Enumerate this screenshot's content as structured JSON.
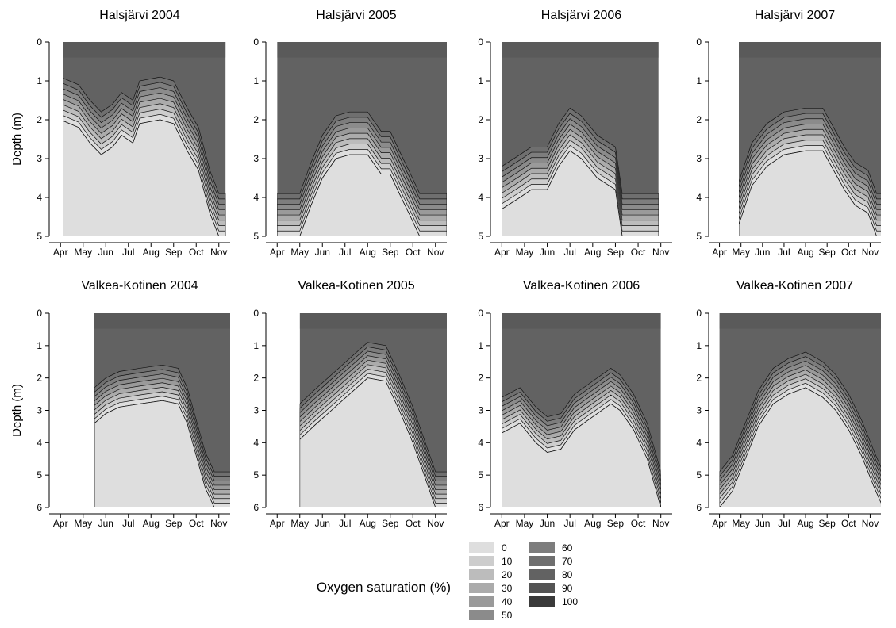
{
  "chart_data": [
    {
      "type": "heatmap",
      "title": "Halsjärvi 2004",
      "ylabel": "Depth (m)",
      "ylim": [
        5,
        0
      ],
      "yticks": [
        0,
        1,
        2,
        3,
        4,
        5
      ],
      "xticks": [
        "Apr",
        "May",
        "Jun",
        "Jul",
        "Aug",
        "Sep",
        "Oct",
        "Nov"
      ],
      "data_start_month": 0.1,
      "data_end_month": 7.3,
      "profile": [
        [
          0,
          2.0
        ],
        [
          0.8,
          2.2
        ],
        [
          1.3,
          2.6
        ],
        [
          1.8,
          2.9
        ],
        [
          2.3,
          2.7
        ],
        [
          2.7,
          2.4
        ],
        [
          3.2,
          2.6
        ],
        [
          3.5,
          2.1
        ],
        [
          4.4,
          2.0
        ],
        [
          5.0,
          2.1
        ],
        [
          5.6,
          2.8
        ],
        [
          6.1,
          3.3
        ],
        [
          6.6,
          4.4
        ],
        [
          7.0,
          5.0
        ],
        [
          7.3,
          5.0
        ]
      ]
    },
    {
      "type": "heatmap",
      "title": "Halsjärvi 2005",
      "ylabel": "",
      "ylim": [
        5,
        0
      ],
      "yticks": [
        0,
        1,
        2,
        3,
        4,
        5
      ],
      "xticks": [
        "Apr",
        "May",
        "Jun",
        "Jul",
        "Aug",
        "Sep",
        "Oct",
        "Nov"
      ],
      "data_start_month": 0.0,
      "data_end_month": 7.5,
      "profile": [
        [
          0,
          5.0
        ],
        [
          1.0,
          5.0
        ],
        [
          1.5,
          4.2
        ],
        [
          2.0,
          3.5
        ],
        [
          2.6,
          3.0
        ],
        [
          3.2,
          2.9
        ],
        [
          4.0,
          2.9
        ],
        [
          4.6,
          3.4
        ],
        [
          5.0,
          3.4
        ],
        [
          5.4,
          3.9
        ],
        [
          5.9,
          4.5
        ],
        [
          6.3,
          5.0
        ],
        [
          7.5,
          5.0
        ]
      ]
    },
    {
      "type": "heatmap",
      "title": "Halsjärvi 2006",
      "ylabel": "",
      "ylim": [
        5,
        0
      ],
      "yticks": [
        0,
        1,
        2,
        3,
        4,
        5
      ],
      "xticks": [
        "Apr",
        "May",
        "Jun",
        "Jul",
        "Aug",
        "Sep",
        "Oct",
        "Nov"
      ],
      "data_start_month": 0.0,
      "data_end_month": 6.9,
      "profile": [
        [
          0,
          4.3
        ],
        [
          0.8,
          4.0
        ],
        [
          1.3,
          3.8
        ],
        [
          2.0,
          3.8
        ],
        [
          2.5,
          3.2
        ],
        [
          3.0,
          2.8
        ],
        [
          3.5,
          3.0
        ],
        [
          4.2,
          3.5
        ],
        [
          5.0,
          3.8
        ],
        [
          5.3,
          5.0
        ],
        [
          6.0,
          5.0
        ],
        [
          6.9,
          5.0
        ]
      ]
    },
    {
      "type": "heatmap",
      "title": "Halsjärvi 2007",
      "ylabel": "",
      "ylim": [
        5,
        0
      ],
      "yticks": [
        0,
        1,
        2,
        3,
        4,
        5
      ],
      "xticks": [
        "Apr",
        "May",
        "Jun",
        "Jul",
        "Aug",
        "Sep",
        "Oct",
        "Nov"
      ],
      "data_start_month": 0.9,
      "data_end_month": 7.6,
      "profile": [
        [
          0.9,
          4.7
        ],
        [
          1.5,
          3.7
        ],
        [
          2.2,
          3.2
        ],
        [
          3.0,
          2.9
        ],
        [
          4.0,
          2.8
        ],
        [
          4.8,
          2.8
        ],
        [
          5.3,
          3.3
        ],
        [
          5.8,
          3.8
        ],
        [
          6.3,
          4.2
        ],
        [
          6.9,
          4.4
        ],
        [
          7.3,
          5.0
        ],
        [
          7.6,
          5.0
        ]
      ]
    },
    {
      "type": "heatmap",
      "title": "Valkea-Kotinen 2004",
      "ylabel": "Depth (m)",
      "ylim": [
        6,
        0
      ],
      "yticks": [
        0,
        1,
        2,
        3,
        4,
        5,
        6
      ],
      "xticks": [
        "Apr",
        "May",
        "Jun",
        "Jul",
        "Aug",
        "Sep",
        "Oct",
        "Nov"
      ],
      "data_start_month": 1.5,
      "data_end_month": 7.6,
      "profile": [
        [
          1.5,
          3.4
        ],
        [
          2.0,
          3.1
        ],
        [
          2.6,
          2.9
        ],
        [
          3.5,
          2.8
        ],
        [
          4.5,
          2.7
        ],
        [
          5.2,
          2.8
        ],
        [
          5.6,
          3.4
        ],
        [
          6.0,
          4.4
        ],
        [
          6.4,
          5.4
        ],
        [
          6.8,
          6.0
        ],
        [
          7.6,
          6.0
        ]
      ]
    },
    {
      "type": "heatmap",
      "title": "Valkea-Kotinen 2005",
      "ylabel": "",
      "ylim": [
        6,
        0
      ],
      "yticks": [
        0,
        1,
        2,
        3,
        4,
        5,
        6
      ],
      "xticks": [
        "Apr",
        "May",
        "Jun",
        "Jul",
        "Aug",
        "Sep",
        "Oct",
        "Nov"
      ],
      "data_start_month": 1.0,
      "data_end_month": 7.6,
      "profile": [
        [
          1.0,
          3.9
        ],
        [
          1.6,
          3.5
        ],
        [
          2.4,
          3.0
        ],
        [
          3.2,
          2.5
        ],
        [
          4.0,
          2.0
        ],
        [
          4.8,
          2.1
        ],
        [
          5.4,
          3.0
        ],
        [
          6.0,
          4.0
        ],
        [
          6.5,
          5.0
        ],
        [
          7.0,
          6.0
        ],
        [
          7.6,
          6.0
        ]
      ]
    },
    {
      "type": "heatmap",
      "title": "Valkea-Kotinen 2006",
      "ylabel": "",
      "ylim": [
        6,
        0
      ],
      "yticks": [
        0,
        1,
        2,
        3,
        4,
        5,
        6
      ],
      "xticks": [
        "Apr",
        "May",
        "Jun",
        "Jul",
        "Aug",
        "Sep",
        "Oct",
        "Nov"
      ],
      "data_start_month": 0.0,
      "data_end_month": 7.0,
      "profile": [
        [
          0,
          3.7
        ],
        [
          0.8,
          3.4
        ],
        [
          1.5,
          4.0
        ],
        [
          2.0,
          4.3
        ],
        [
          2.6,
          4.2
        ],
        [
          3.2,
          3.6
        ],
        [
          4.0,
          3.2
        ],
        [
          4.8,
          2.8
        ],
        [
          5.2,
          3.0
        ],
        [
          5.8,
          3.6
        ],
        [
          6.4,
          4.5
        ],
        [
          7.0,
          6.0
        ]
      ]
    },
    {
      "type": "heatmap",
      "title": "Valkea-Kotinen 2007",
      "ylabel": "",
      "ylim": [
        6,
        0
      ],
      "yticks": [
        0,
        1,
        2,
        3,
        4,
        5,
        6
      ],
      "xticks": [
        "Apr",
        "May",
        "Jun",
        "Jul",
        "Aug",
        "Sep",
        "Oct",
        "Nov"
      ],
      "data_start_month": 0.0,
      "data_end_month": 7.6,
      "profile": [
        [
          0,
          6.0
        ],
        [
          0.6,
          5.5
        ],
        [
          1.2,
          4.5
        ],
        [
          1.8,
          3.5
        ],
        [
          2.5,
          2.8
        ],
        [
          3.2,
          2.5
        ],
        [
          4.0,
          2.3
        ],
        [
          4.8,
          2.6
        ],
        [
          5.4,
          3.0
        ],
        [
          6.0,
          3.6
        ],
        [
          6.6,
          4.4
        ],
        [
          7.2,
          5.4
        ],
        [
          7.6,
          6.0
        ]
      ]
    }
  ],
  "legend": {
    "title": "Oxygen saturation (%)",
    "levels": [
      {
        "label": "0",
        "color": "#dedede"
      },
      {
        "label": "10",
        "color": "#cdcdcd"
      },
      {
        "label": "20",
        "color": "#bcbcbc"
      },
      {
        "label": "30",
        "color": "#ababab"
      },
      {
        "label": "40",
        "color": "#9a9a9a"
      },
      {
        "label": "50",
        "color": "#8b8b8b"
      },
      {
        "label": "60",
        "color": "#7d7d7d"
      },
      {
        "label": "70",
        "color": "#6f6f6f"
      },
      {
        "label": "80",
        "color": "#626262"
      },
      {
        "label": "90",
        "color": "#545454"
      },
      {
        "label": "100",
        "color": "#3a3a3a"
      }
    ]
  }
}
